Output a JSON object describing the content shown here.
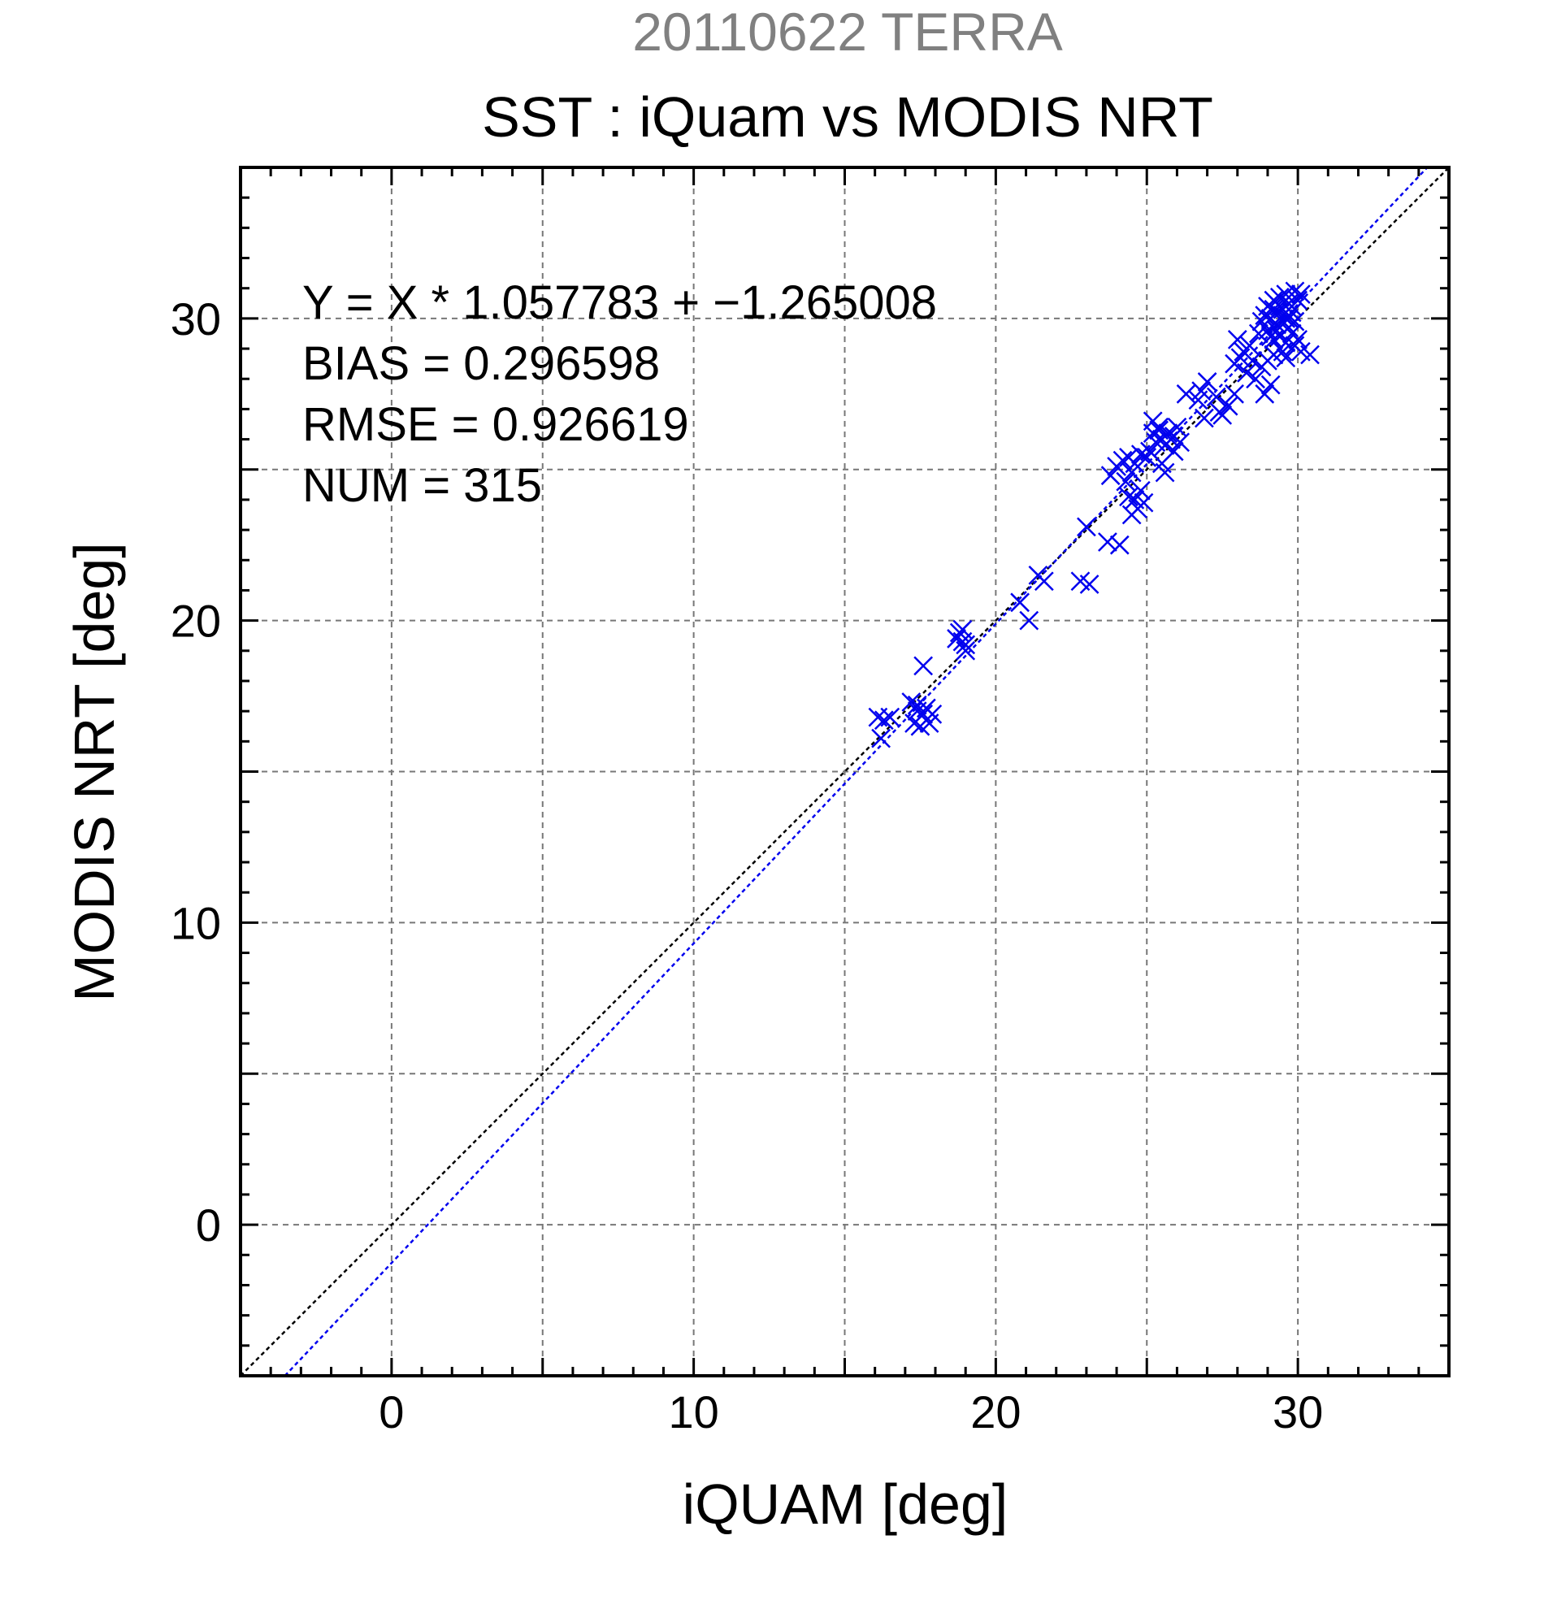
{
  "chart_data": {
    "type": "scatter",
    "date_title": "20110622 TERRA",
    "title": "SST : iQuam vs MODIS NRT",
    "xlabel": "iQUAM [deg]",
    "ylabel": "MODIS NRT [deg]",
    "xlim": [
      -5,
      35
    ],
    "ylim": [
      -5,
      35
    ],
    "xticks": [
      0,
      10,
      20,
      30
    ],
    "yticks": [
      0,
      10,
      20,
      30
    ],
    "xtick_labels": [
      "0",
      "10",
      "20",
      "30"
    ],
    "ytick_labels": [
      "0",
      "10",
      "20",
      "30"
    ],
    "grid": true,
    "stats": [
      "Y = X * 1.057783 + −1.265008",
      "BIAS = 0.296598",
      "RMSE = 0.926619",
      "NUM = 315"
    ],
    "fit_line": {
      "slope": 1.057783,
      "intercept": -1.265008,
      "color": "#0000ee"
    },
    "identity_line": {
      "color": "#000000"
    },
    "colors": {
      "title_date": "#808080",
      "points": "#0000ee",
      "grid": "#777777"
    },
    "series": [
      {
        "marker": "x",
        "points": [
          [
            16.1,
            16.8
          ],
          [
            16.3,
            16.7
          ],
          [
            16.5,
            16.8
          ],
          [
            16.2,
            16.1
          ],
          [
            17.2,
            17.3
          ],
          [
            17.4,
            17.0
          ],
          [
            17.3,
            16.6
          ],
          [
            17.6,
            16.9
          ],
          [
            17.8,
            16.6
          ],
          [
            17.9,
            16.9
          ],
          [
            17.5,
            16.5
          ],
          [
            17.7,
            17.1
          ],
          [
            17.6,
            18.5
          ],
          [
            17.4,
            17.2
          ],
          [
            18.8,
            19.6
          ],
          [
            18.9,
            19.3
          ],
          [
            19.0,
            19.0
          ],
          [
            18.9,
            19.7
          ],
          [
            18.7,
            19.4
          ],
          [
            19.0,
            19.2
          ],
          [
            20.8,
            20.6
          ],
          [
            21.1,
            20.0
          ],
          [
            21.4,
            21.5
          ],
          [
            21.6,
            21.3
          ],
          [
            22.8,
            21.3
          ],
          [
            23.1,
            21.2
          ],
          [
            23.0,
            23.1
          ],
          [
            23.7,
            22.6
          ],
          [
            24.1,
            22.5
          ],
          [
            23.8,
            24.8
          ],
          [
            24.0,
            25.1
          ],
          [
            24.2,
            25.3
          ],
          [
            24.4,
            25.4
          ],
          [
            24.5,
            24.9
          ],
          [
            24.6,
            25.2
          ],
          [
            24.8,
            25.5
          ],
          [
            25.0,
            25.4
          ],
          [
            24.3,
            24.6
          ],
          [
            24.6,
            24.0
          ],
          [
            24.7,
            23.7
          ],
          [
            24.5,
            23.5
          ],
          [
            24.9,
            23.9
          ],
          [
            24.8,
            24.3
          ],
          [
            24.4,
            24.1
          ],
          [
            25.1,
            25.6
          ],
          [
            25.2,
            26.2
          ],
          [
            25.3,
            25.9
          ],
          [
            25.4,
            26.3
          ],
          [
            25.5,
            26.0
          ],
          [
            25.6,
            25.8
          ],
          [
            25.7,
            26.2
          ],
          [
            25.8,
            26.0
          ],
          [
            25.9,
            26.1
          ],
          [
            26.0,
            26.4
          ],
          [
            26.1,
            25.9
          ],
          [
            25.5,
            25.2
          ],
          [
            25.6,
            24.9
          ],
          [
            25.9,
            25.6
          ],
          [
            25.2,
            26.6
          ],
          [
            25.4,
            26.4
          ],
          [
            26.3,
            27.5
          ],
          [
            26.7,
            27.3
          ],
          [
            26.9,
            26.7
          ],
          [
            27.0,
            27.9
          ],
          [
            27.3,
            27.4
          ],
          [
            27.5,
            26.8
          ],
          [
            27.7,
            27.1
          ],
          [
            27.9,
            27.5
          ],
          [
            26.8,
            27.6
          ],
          [
            27.4,
            26.9
          ],
          [
            27.9,
            28.5
          ],
          [
            28.0,
            29.3
          ],
          [
            28.2,
            28.9
          ],
          [
            28.4,
            29.1
          ],
          [
            28.5,
            28.6
          ],
          [
            28.7,
            29.5
          ],
          [
            28.3,
            28.2
          ],
          [
            28.6,
            28.0
          ],
          [
            28.9,
            27.5
          ],
          [
            29.1,
            27.8
          ],
          [
            28.8,
            28.4
          ],
          [
            28.1,
            28.7
          ],
          [
            28.8,
            29.9
          ],
          [
            28.9,
            30.1
          ],
          [
            29.0,
            29.6
          ],
          [
            29.0,
            30.4
          ],
          [
            29.1,
            30.0
          ],
          [
            29.2,
            30.6
          ],
          [
            29.2,
            29.3
          ],
          [
            29.3,
            30.2
          ],
          [
            29.3,
            29.8
          ],
          [
            29.4,
            30.7
          ],
          [
            29.4,
            29.4
          ],
          [
            29.5,
            30.3
          ],
          [
            29.5,
            29.9
          ],
          [
            29.6,
            30.8
          ],
          [
            29.6,
            30.0
          ],
          [
            29.7,
            29.7
          ],
          [
            29.7,
            30.5
          ],
          [
            29.8,
            30.2
          ],
          [
            29.9,
            30.9
          ],
          [
            30.0,
            30.6
          ],
          [
            30.1,
            30.8
          ],
          [
            29.8,
            29.5
          ],
          [
            29.6,
            29.2
          ],
          [
            29.4,
            29.0
          ],
          [
            29.2,
            28.8
          ],
          [
            29.0,
            28.6
          ],
          [
            29.9,
            29.1
          ],
          [
            30.1,
            28.9
          ],
          [
            30.4,
            28.8
          ],
          [
            29.6,
            28.7
          ],
          [
            29.3,
            29.6
          ],
          [
            29.5,
            30.1
          ],
          [
            29.7,
            30.0
          ],
          [
            29.1,
            29.4
          ],
          [
            29.4,
            30.4
          ],
          [
            29.8,
            30.4
          ],
          [
            29.9,
            29.9
          ],
          [
            29.2,
            30.3
          ],
          [
            30.0,
            29.3
          ],
          [
            29.5,
            28.9
          ]
        ]
      }
    ]
  }
}
